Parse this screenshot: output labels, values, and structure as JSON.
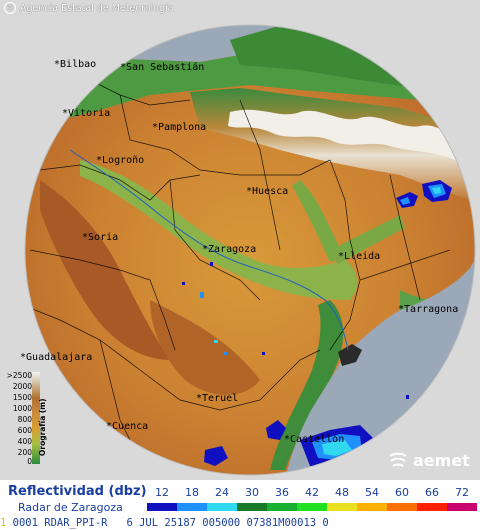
{
  "header": {
    "credit": "Agencia Estatal de Meteorología",
    "copyright_icon": "copyright-icon"
  },
  "cities": [
    {
      "name": "Bilbao"
    },
    {
      "name": "San Sebastián"
    },
    {
      "name": "Vitoria"
    },
    {
      "name": "Pamplona"
    },
    {
      "name": "Logroño"
    },
    {
      "name": "Huesca"
    },
    {
      "name": "Soria"
    },
    {
      "name": "Zaragoza"
    },
    {
      "name": "Lleida"
    },
    {
      "name": "Tarragona"
    },
    {
      "name": "Guadalajara"
    },
    {
      "name": "Teruel"
    },
    {
      "name": "Cuenca"
    },
    {
      "name": "Castellón"
    }
  ],
  "orography": {
    "title": "Orografía (m)",
    "ticks": [
      ">2500",
      "2000",
      "1500",
      "1000",
      "800",
      "600",
      "400",
      "200",
      "0"
    ]
  },
  "brand": {
    "name": "aemet",
    "icon": "aemet-swirl-icon"
  },
  "legend": {
    "title": "Reflectividad (dbz)",
    "radar": "Radar de Zaragoza",
    "values": [
      "12",
      "18",
      "24",
      "30",
      "36",
      "42",
      "48",
      "54",
      "60",
      "66",
      "72"
    ],
    "colors": [
      "#1010c0",
      "#2090ff",
      "#30d8f0",
      "#1a7a28",
      "#18b030",
      "#20e020",
      "#e8e020",
      "#ffb000",
      "#ff7000",
      "#ff2000",
      "#c80070"
    ]
  },
  "status_line": {
    "lead": "1",
    "text": "0001 RDAR_PPI-R   6 JUL 25187 005000 07381M00013 0"
  },
  "colors": {
    "sea": "#9aa8b8",
    "outside_range": "#d9d9d9",
    "label_blue": "#1a3fa0"
  }
}
